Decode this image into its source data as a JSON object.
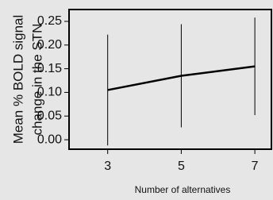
{
  "chart_data": {
    "type": "line",
    "ylabel": [
      "Mean % BOLD signal",
      "change in the STN"
    ],
    "xlabel": "Number of alternatives",
    "x": [
      3,
      5,
      7
    ],
    "series": [
      {
        "color": "#000000",
        "values": [
          0.105,
          0.135,
          0.155
        ],
        "errors": [
          0.117,
          0.109,
          0.103
        ]
      }
    ],
    "xlim": [
      1.95,
      7.45
    ],
    "xticks": [
      3,
      5,
      7
    ],
    "ylim": [
      -0.02,
      0.275
    ],
    "yticks": [
      {
        "value": 0,
        "label": "0.00"
      },
      0.05,
      {
        "value": 0.1,
        "label": "0.10"
      },
      0.15,
      {
        "value": 0.2,
        "label": "0.20"
      },
      0.25
    ]
  }
}
